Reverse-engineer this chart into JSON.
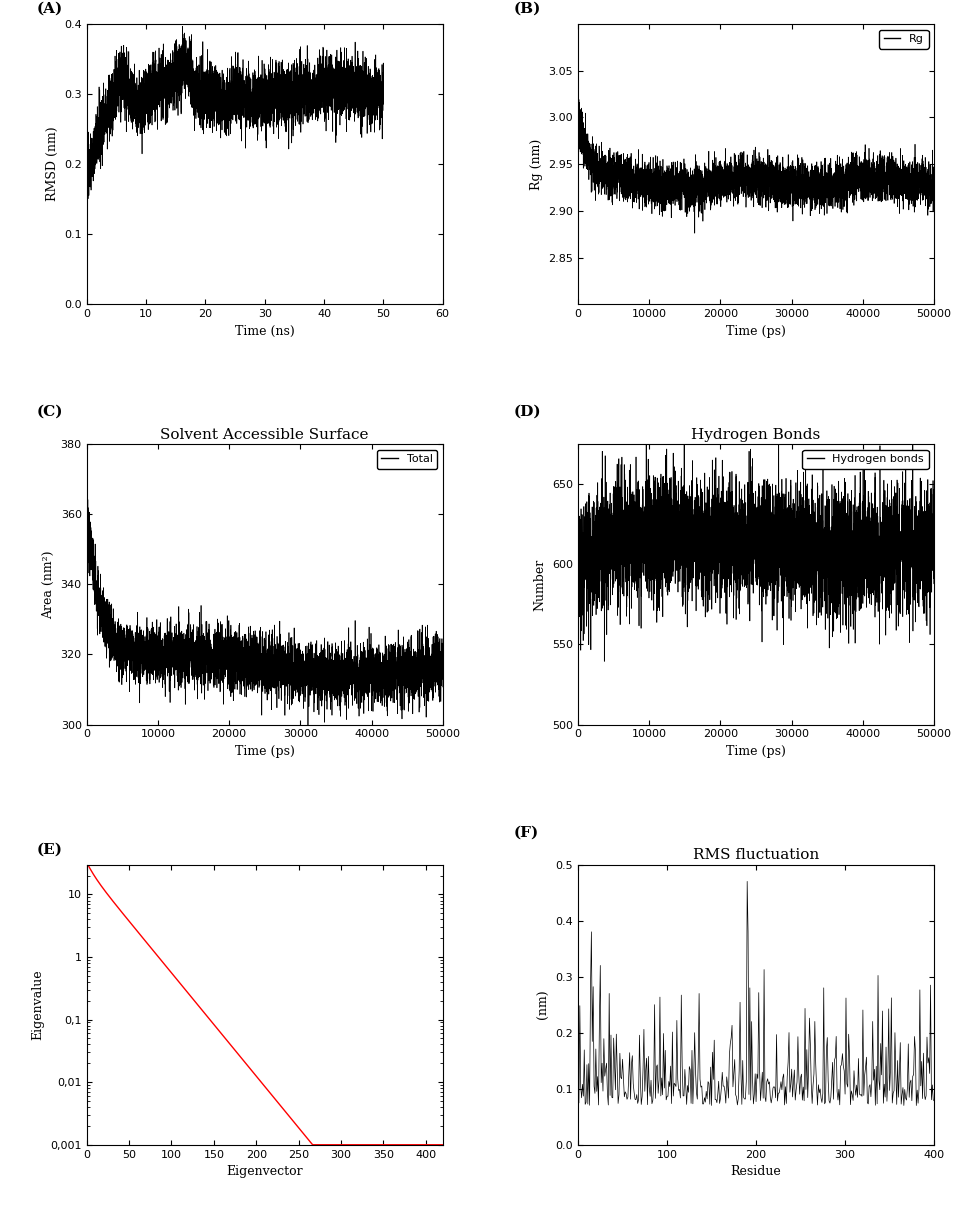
{
  "panel_A": {
    "label": "(A)",
    "xlabel": "Time (ns)",
    "ylabel": "RMSD (nm)",
    "xlim": [
      0,
      60
    ],
    "ylim": [
      0,
      0.4
    ],
    "xticks": [
      0,
      10,
      20,
      30,
      40,
      50,
      60
    ],
    "yticks": [
      0,
      0.1,
      0.2,
      0.3,
      0.4
    ],
    "color": "black",
    "linewidth": 0.5,
    "seed": 42,
    "n_points": 5000
  },
  "panel_B": {
    "label": "(B)",
    "xlabel": "Time (ps)",
    "ylabel": "Rg (nm)",
    "legend_label": "Rg",
    "xlim": [
      0,
      50000
    ],
    "ylim": [
      2.8,
      3.1
    ],
    "xticks": [
      0,
      10000,
      20000,
      30000,
      40000,
      50000
    ],
    "yticks": [
      2.85,
      2.9,
      2.95,
      3.0,
      3.05
    ],
    "color": "black",
    "linewidth": 0.5,
    "seed": 123,
    "n_points": 5000
  },
  "panel_C": {
    "label": "(C)",
    "title": "Solvent Accessible Surface",
    "xlabel": "Time (ps)",
    "ylabel": "Area (nm²)",
    "legend_label": "Total",
    "xlim": [
      0,
      50000
    ],
    "ylim": [
      300,
      380
    ],
    "xticks": [
      0,
      10000,
      20000,
      30000,
      40000,
      50000
    ],
    "yticks": [
      300,
      320,
      340,
      360,
      380
    ],
    "color": "black",
    "linewidth": 0.5,
    "seed": 7,
    "n_points": 5000
  },
  "panel_D": {
    "label": "(D)",
    "title": "Hydrogen Bonds",
    "xlabel": "Time (ps)",
    "ylabel": "Number",
    "legend_label": "Hydrogen bonds",
    "xlim": [
      0,
      50000
    ],
    "ylim": [
      500,
      675
    ],
    "xticks": [
      0,
      10000,
      20000,
      30000,
      40000,
      50000
    ],
    "yticks": [
      500,
      550,
      600,
      650
    ],
    "color": "black",
    "linewidth": 0.5,
    "seed": 99,
    "n_points": 5000
  },
  "panel_E": {
    "label": "(E)",
    "xlabel": "Eigenvector",
    "ylabel": "Eigenvalue",
    "xlim": [
      0,
      420
    ],
    "ylim_log": [
      0.001,
      30
    ],
    "xticks": [
      0,
      50,
      100,
      150,
      200,
      250,
      300,
      350,
      400
    ],
    "yticks_log": [
      0.001,
      0.01,
      0.1,
      1,
      10
    ],
    "ytick_labels": [
      "0,001",
      "0,01",
      "0,1",
      "1",
      "10"
    ],
    "color": "red",
    "linewidth": 1.0,
    "n_points": 420
  },
  "panel_F": {
    "label": "(F)",
    "title": "RMS fluctuation",
    "xlabel": "Residue",
    "ylabel": "(nm)",
    "xlim": [
      0,
      400
    ],
    "ylim": [
      0,
      0.5
    ],
    "xticks": [
      0,
      100,
      200,
      300,
      400
    ],
    "yticks": [
      0.0,
      0.1,
      0.2,
      0.3,
      0.4,
      0.5
    ],
    "color": "black",
    "linewidth": 0.5,
    "seed": 55,
    "n_points": 400
  }
}
